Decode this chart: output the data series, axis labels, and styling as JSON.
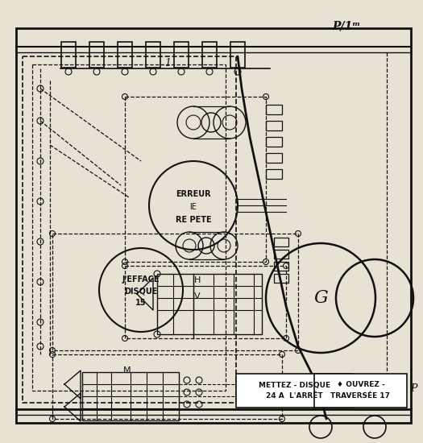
{
  "bg_color": "#e8e2d5",
  "line_color": "#111111",
  "title_text": "P/1ᵐ",
  "label_G": "G",
  "label_erreur1": "ERREUR",
  "label_erreur2": "lE",
  "label_erreur3": "RE PETE",
  "label_jefface1": "J'EFFACE",
  "label_jefface2": "DISQUE",
  "label_jefface3": "15",
  "label_H": "H",
  "label_V": "V",
  "label_M": "M",
  "label_mettez": "METTEZ - DISQUE\n24 A  L'ARRÊT",
  "label_ouvrez": "♦ OUVREZ -\nTRAVERSÉE 17",
  "label_P": "P"
}
